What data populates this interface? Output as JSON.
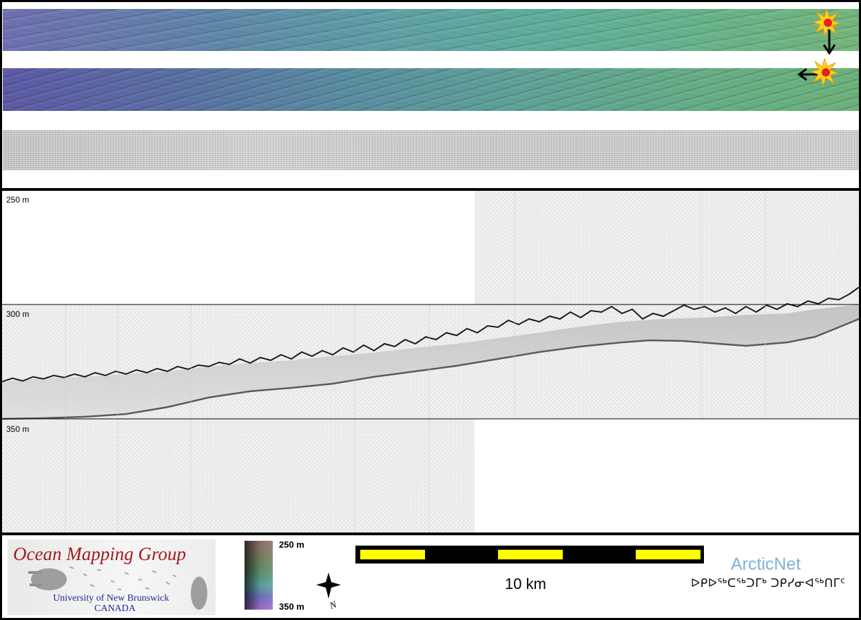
{
  "depth_labels": [
    "250 m",
    "300 m",
    "350 m"
  ],
  "colorbar": {
    "top_label": "250 m",
    "bottom_label": "350 m"
  },
  "scalebar": {
    "label": "10 km",
    "colors": {
      "bar": "#000000",
      "segment": "#ffff00"
    }
  },
  "logos": {
    "omg": {
      "title": "Ocean Mapping Group",
      "subtitle_line1": "University of New Brunswick",
      "subtitle_line2": "CANADA"
    },
    "arcticnet": {
      "name": "ArcticNet",
      "syllabics": "ᐅᑭᐅᖅᑕᖅᑐᒥᒃ ᑐᑭᓯᓂᐊᖅᑎᒥᑦ"
    }
  },
  "north_arrow": {
    "label": "N"
  },
  "markers": [
    {
      "type": "ship-position-icon",
      "direction": "down"
    },
    {
      "type": "ship-position-icon",
      "direction": "left"
    }
  ]
}
